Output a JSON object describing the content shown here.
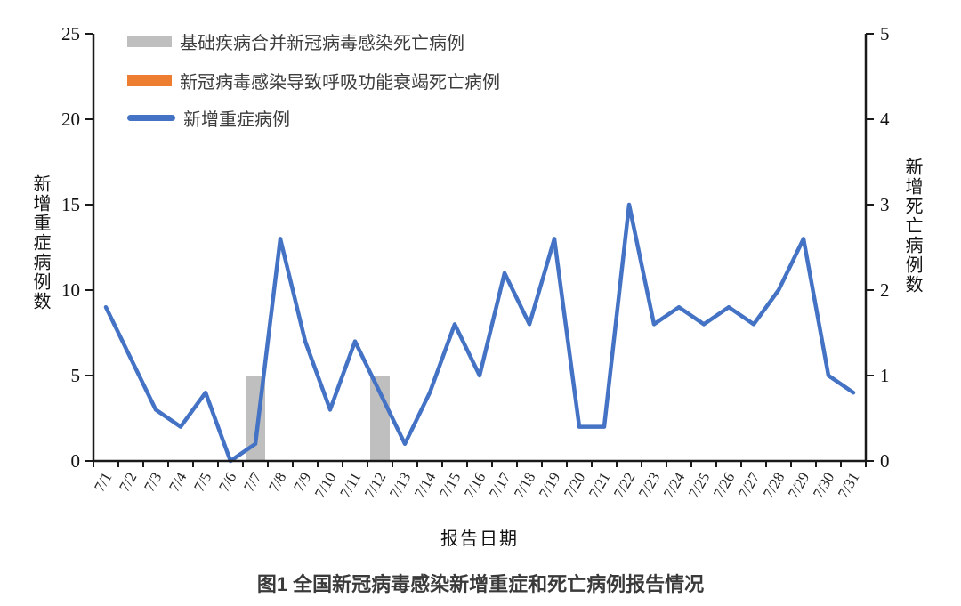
{
  "chart_data": {
    "type": "combo-bar-line",
    "title": "图1 全国新冠病毒感染新增重症和死亡病例报告情况",
    "xlabel": "报告日期",
    "grid": false,
    "legend_position": "top-left-inside",
    "categories": [
      "7/1",
      "7/2",
      "7/3",
      "7/4",
      "7/5",
      "7/6",
      "7/7",
      "7/8",
      "7/9",
      "7/10",
      "7/11",
      "7/12",
      "7/13",
      "7/14",
      "7/15",
      "7/16",
      "7/17",
      "7/18",
      "7/19",
      "7/20",
      "7/21",
      "7/22",
      "7/23",
      "7/24",
      "7/25",
      "7/26",
      "7/27",
      "7/28",
      "7/29",
      "7/30",
      "7/31"
    ],
    "left_axis": {
      "label": "新增重症病例数",
      "range": [
        0,
        25
      ],
      "ticks": [
        0,
        5,
        10,
        15,
        20,
        25
      ]
    },
    "right_axis": {
      "label": "新增死亡病例数",
      "range": [
        0,
        5
      ],
      "ticks": [
        0,
        1,
        2,
        3,
        4,
        5
      ]
    },
    "series": [
      {
        "name": "基础疾病合并新冠病毒感染死亡病例",
        "type": "bar",
        "axis": "right",
        "color": "#BFBFBF",
        "values": [
          0,
          0,
          0,
          0,
          0,
          0,
          1,
          0,
          0,
          0,
          0,
          1,
          0,
          0,
          0,
          0,
          0,
          0,
          0,
          0,
          0,
          0,
          0,
          0,
          0,
          0,
          0,
          0,
          0,
          0,
          0
        ]
      },
      {
        "name": "新冠病毒感染导致呼吸功能衰竭死亡病例",
        "type": "bar",
        "axis": "right",
        "color": "#ED7D31",
        "values": [
          0,
          0,
          0,
          0,
          0,
          0,
          0,
          0,
          0,
          0,
          0,
          0,
          0,
          0,
          0,
          0,
          0,
          0,
          0,
          0,
          0,
          0,
          0,
          0,
          0,
          0,
          0,
          0,
          0,
          0,
          0
        ]
      },
      {
        "name": "新增重症病例",
        "type": "line",
        "axis": "left",
        "color": "#4472C4",
        "values": [
          9,
          6,
          3,
          2,
          4,
          0,
          1,
          13,
          7,
          3,
          7,
          4,
          1,
          4,
          8,
          5,
          11,
          8,
          13,
          2,
          2,
          15,
          8,
          9,
          8,
          9,
          8,
          10,
          13,
          5,
          4
        ]
      }
    ],
    "axis_color": "#1a1a1a"
  }
}
